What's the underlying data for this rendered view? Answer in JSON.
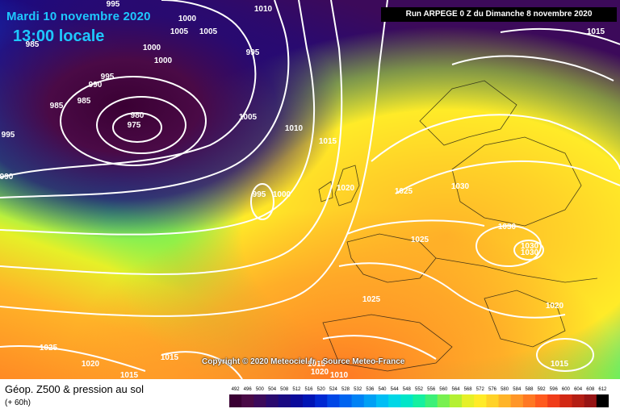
{
  "header": {
    "date": "Mardi 10 novembre 2020",
    "time": "13:00 locale",
    "run": "Run ARPEGE 0 Z du Dimanche 8 novembre 2020"
  },
  "copyright": "Copyright © 2020 Meteociel.fr - Source Meteo-France",
  "footer": {
    "title": "Géop. Z500 & pression au sol",
    "subtitle": "(+ 60h)"
  },
  "legend": {
    "values": [
      "492",
      "496",
      "500",
      "504",
      "508",
      "512",
      "516",
      "520",
      "524",
      "528",
      "532",
      "536",
      "540",
      "544",
      "548",
      "552",
      "556",
      "560",
      "564",
      "568",
      "572",
      "576",
      "580",
      "584",
      "588",
      "592",
      "596",
      "600",
      "604",
      "608",
      "612"
    ],
    "colors": [
      "#3a0033",
      "#4a0a46",
      "#3c0a5a",
      "#2a0a6e",
      "#1a0a82",
      "#0a0a9a",
      "#0014b4",
      "#0028d2",
      "#0046e6",
      "#0064f0",
      "#0082f5",
      "#00a0f5",
      "#00bef5",
      "#00d7e6",
      "#00e6c8",
      "#14f0a0",
      "#3cf078",
      "#78f050",
      "#b4f032",
      "#e6f028",
      "#ffeb28",
      "#ffd228",
      "#ffb428",
      "#ff9628",
      "#ff7823",
      "#ff5a1e",
      "#f03c19",
      "#d22814",
      "#b41e14",
      "#961414",
      "#000000"
    ]
  },
  "pressure_labels": [
    {
      "text": "995"
    },
    {
      "text": "1000"
    },
    {
      "text": "1010"
    },
    {
      "text": "1005"
    },
    {
      "text": "1005"
    },
    {
      "text": "985"
    },
    {
      "text": "1000"
    },
    {
      "text": "1000"
    },
    {
      "text": "995"
    },
    {
      "text": "990"
    },
    {
      "text": "995"
    },
    {
      "text": "985"
    },
    {
      "text": "985"
    },
    {
      "text": "980"
    },
    {
      "text": "975"
    },
    {
      "text": "995"
    },
    {
      "text": "990"
    },
    {
      "text": "1005"
    },
    {
      "text": "1010"
    },
    {
      "text": "1015"
    },
    {
      "text": "995"
    },
    {
      "text": "1000"
    },
    {
      "text": "1020"
    },
    {
      "text": "1025"
    },
    {
      "text": "1030"
    },
    {
      "text": "1030"
    },
    {
      "text": "1025"
    },
    {
      "text": "1030"
    },
    {
      "text": "1030"
    },
    {
      "text": "1025"
    },
    {
      "text": "1020"
    },
    {
      "text": "1015"
    },
    {
      "text": "1025"
    },
    {
      "text": "1020"
    },
    {
      "text": "1015"
    },
    {
      "text": "1015"
    },
    {
      "text": "1020"
    },
    {
      "text": "1015"
    },
    {
      "text": "1010"
    },
    {
      "text": "1015"
    }
  ]
}
